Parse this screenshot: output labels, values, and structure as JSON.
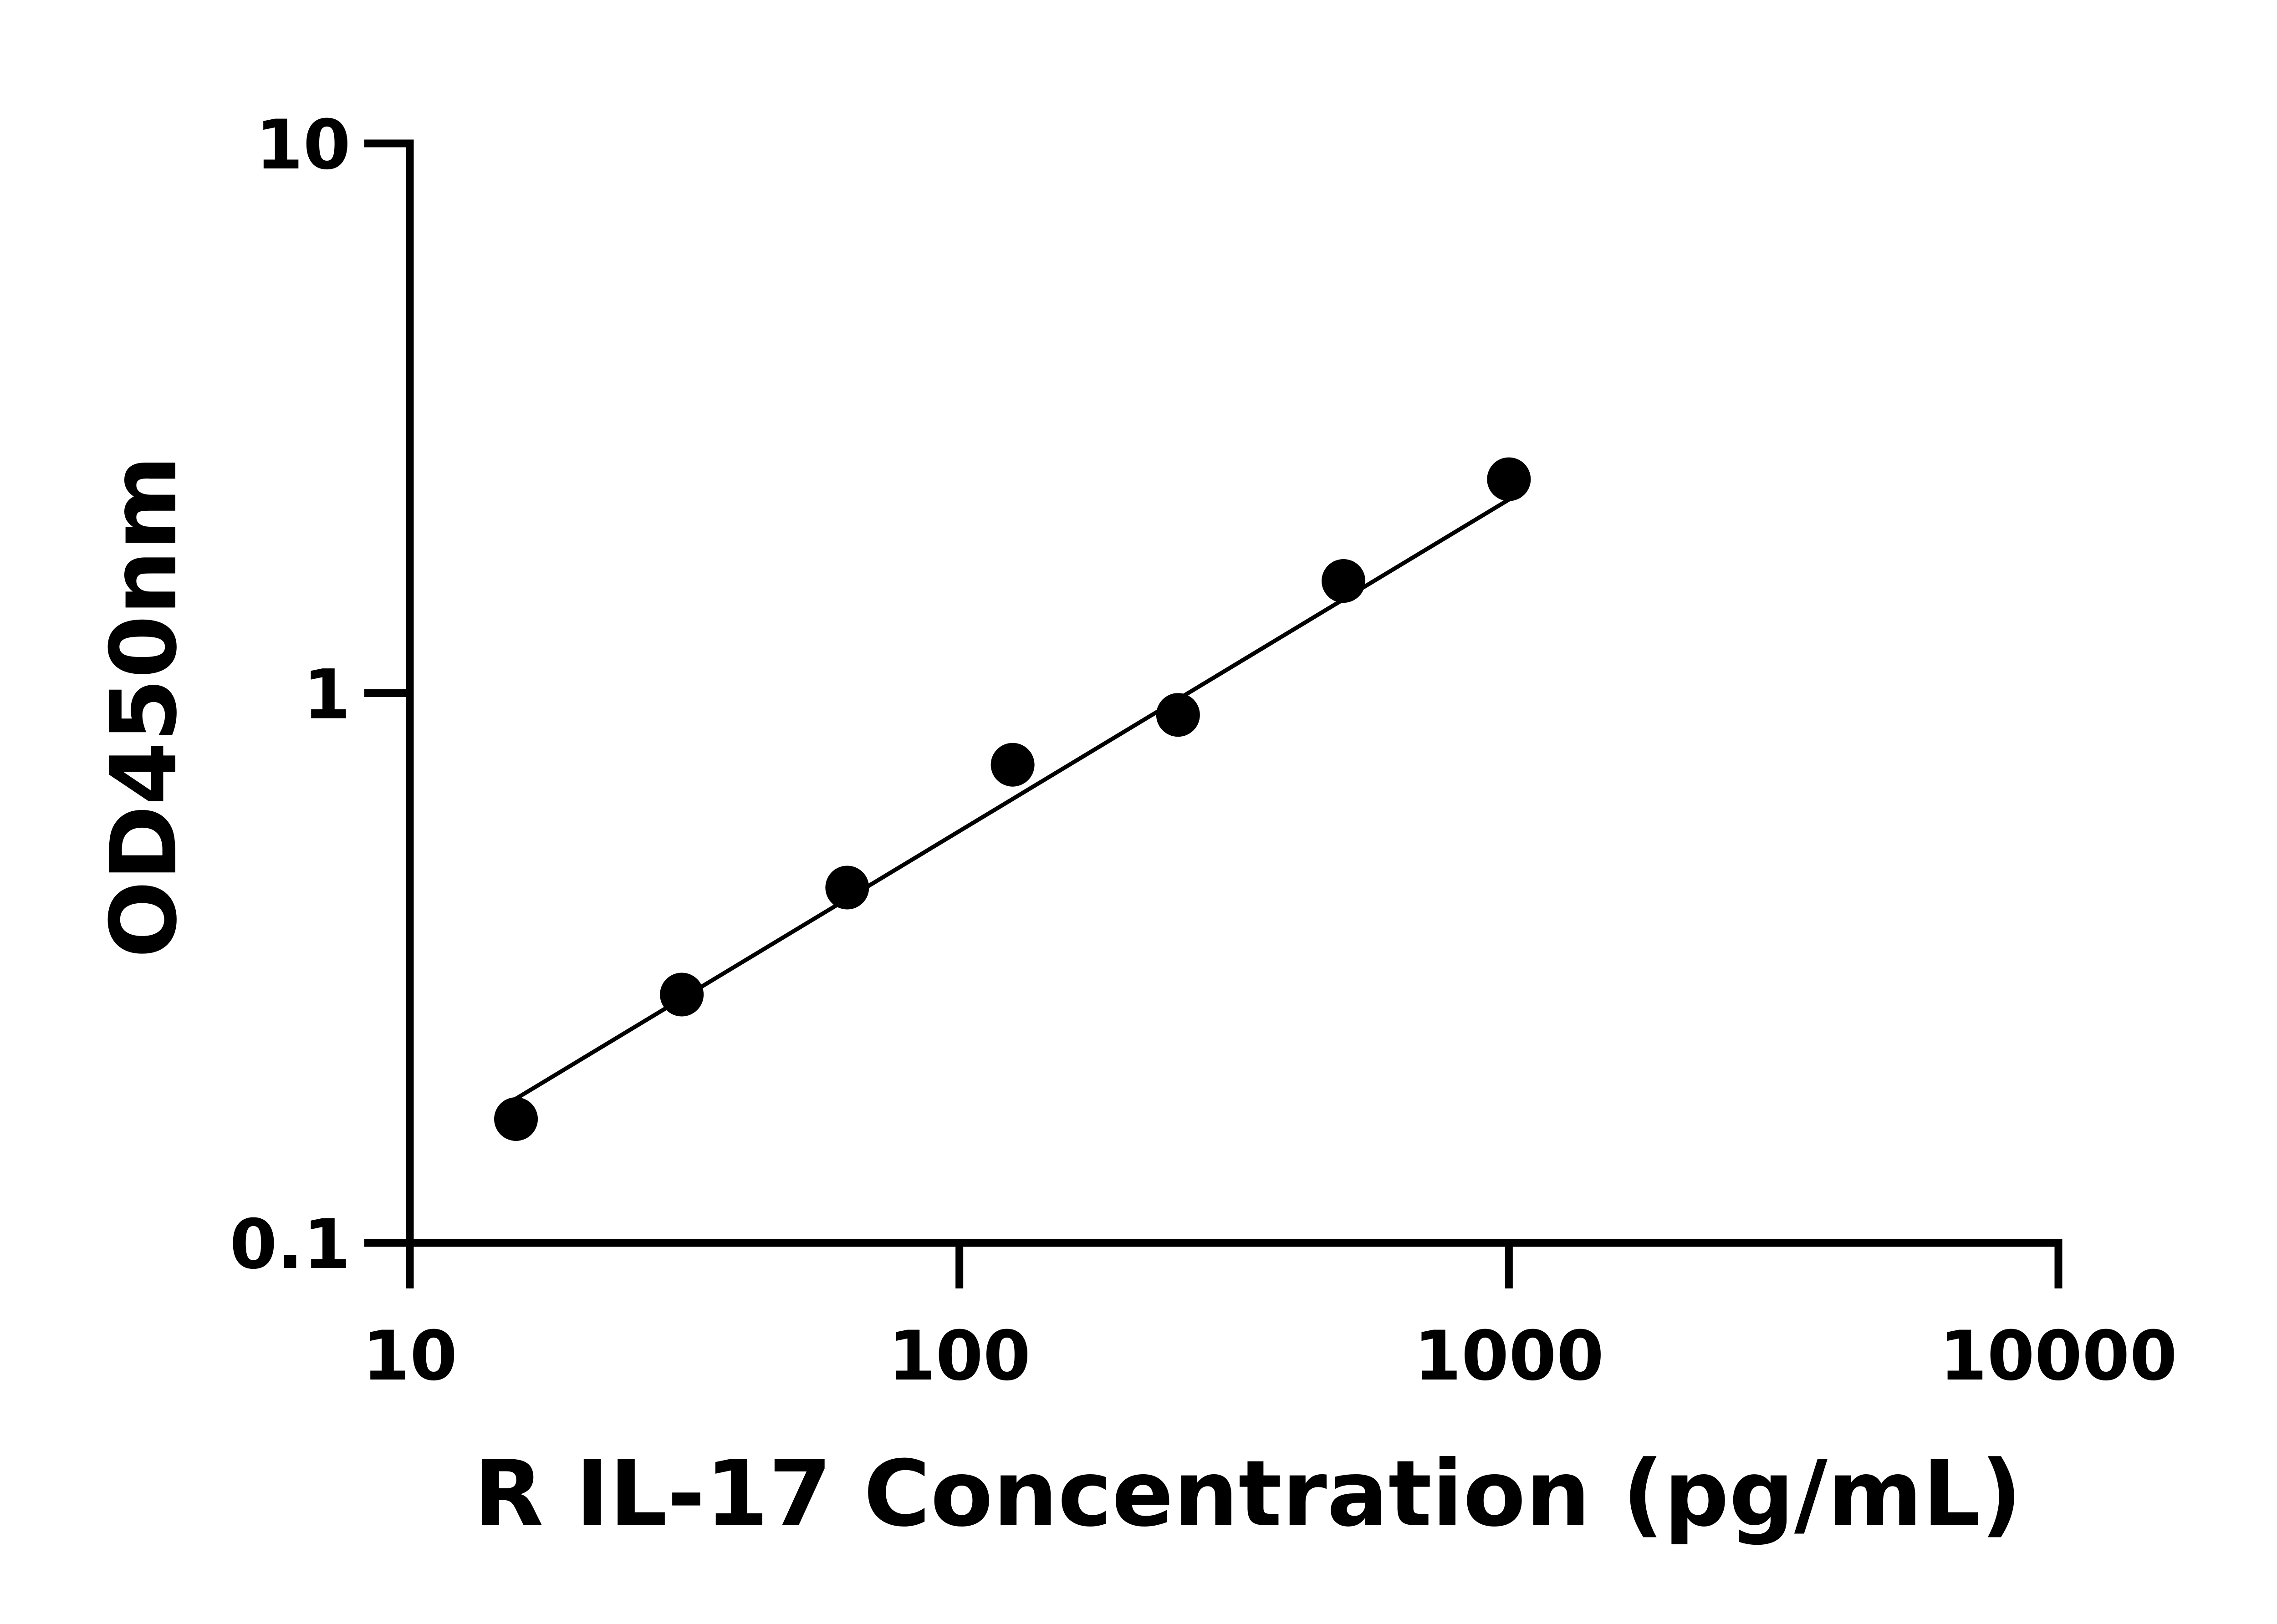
{
  "chart_data": {
    "type": "scatter",
    "title": "",
    "xlabel": "R IL-17 Concentration (pg/mL)",
    "ylabel": "OD450nm",
    "x_scale": "log",
    "y_scale": "log",
    "xlim": [
      10,
      10000
    ],
    "ylim": [
      0.1,
      10
    ],
    "x_ticks": [
      10,
      100,
      1000,
      10000
    ],
    "x_tick_labels": [
      "10",
      "100",
      "1000",
      "10000"
    ],
    "y_ticks": [
      0.1,
      1,
      10
    ],
    "y_tick_labels": [
      "0.1",
      "1",
      "10"
    ],
    "grid": false,
    "legend": "none",
    "series": [
      {
        "x": [
          15.6,
          31.25,
          62.5,
          125,
          250,
          500,
          1000
        ],
        "y": [
          0.168,
          0.283,
          0.443,
          0.741,
          0.913,
          1.6,
          2.45
        ],
        "marker": "circle",
        "color": "#000000"
      }
    ],
    "fit_line": {
      "x": [
        15.6,
        1000
      ],
      "y": [
        0.183,
        2.25
      ],
      "color": "#000000"
    }
  }
}
